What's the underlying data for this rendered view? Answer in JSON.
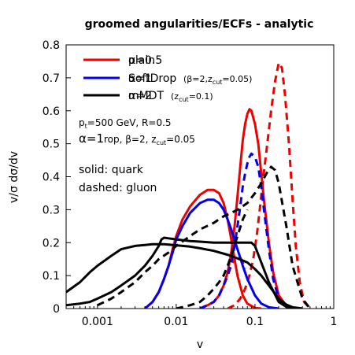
{
  "chart_data": {
    "type": "line",
    "title": "groomed angularities/ECFs - analytic",
    "xlabel": "v",
    "ylabel": "v/σ dσ/dv",
    "xscale": "log",
    "xlim": [
      0.0004,
      1
    ],
    "ylim": [
      0,
      0.8
    ],
    "xticks": [
      {
        "value": 0.001,
        "label": "0.001"
      },
      {
        "value": 0.01,
        "label": "0.01"
      },
      {
        "value": 0.1,
        "label": "0.1"
      },
      {
        "value": 1,
        "label": "1"
      }
    ],
    "yticks": [
      {
        "value": 0,
        "label": "0"
      },
      {
        "value": 0.1,
        "label": "0.1"
      },
      {
        "value": 0.2,
        "label": "0.2"
      },
      {
        "value": 0.3,
        "label": "0.3"
      },
      {
        "value": 0.4,
        "label": "0.4"
      },
      {
        "value": 0.5,
        "label": "0.5"
      },
      {
        "value": 0.6,
        "label": "0.6"
      },
      {
        "value": 0.7,
        "label": "0.7"
      },
      {
        "value": 0.8,
        "label": "0.8"
      }
    ],
    "legend": {
      "placement": "top-left",
      "entries": [
        {
          "text_a": "plain",
          "text_b": "α=0.5",
          "sub": "",
          "color": "#ee0000"
        },
        {
          "text_a": "SoftDrop",
          "text_b": "α=1",
          "sub": "(β=2,z",
          "sub2": "cut",
          "sub3": "=0.05)",
          "color": "#0000ee"
        },
        {
          "text_a": "mMDT",
          "text_b": "α=2",
          "sub": "(z",
          "sub2": "cut",
          "sub3": "=0.1)",
          "color": "#000000"
        }
      ]
    },
    "annotations": {
      "line1_a": "p",
      "line1_sub": "t",
      "line1_b": "=500 GeV, R=0.5",
      "line2_a": "α=1",
      "line2_b": "rop, β=2, z",
      "line2_sub": "cut",
      "line2_c": "=0.05",
      "line3": "solid: quark",
      "line4": "dashed: gluon"
    },
    "series": [
      {
        "color": "#ee0000",
        "dash": false,
        "x": [
          0.02,
          0.025,
          0.03,
          0.035,
          0.04,
          0.045,
          0.05,
          0.055,
          0.06,
          0.065,
          0.07,
          0.075,
          0.08,
          0.085,
          0.09,
          0.1,
          0.11,
          0.12,
          0.13,
          0.15,
          0.17,
          0.2,
          0.25,
          0.3,
          0.35
        ],
        "y": [
          0.0,
          0.01,
          0.02,
          0.04,
          0.07,
          0.11,
          0.17,
          0.25,
          0.34,
          0.43,
          0.51,
          0.56,
          0.59,
          0.605,
          0.6,
          0.56,
          0.5,
          0.41,
          0.33,
          0.2,
          0.11,
          0.04,
          0.008,
          0.001,
          0.0
        ]
      },
      {
        "color": "#ee0000",
        "dash": false,
        "x": [
          0.004,
          0.005,
          0.006,
          0.007,
          0.008,
          0.009,
          0.01,
          0.012,
          0.015,
          0.02,
          0.025,
          0.03,
          0.035,
          0.04,
          0.045,
          0.05,
          0.055,
          0.06,
          0.07,
          0.08,
          0.1,
          0.12
        ],
        "y": [
          0.0,
          0.02,
          0.05,
          0.09,
          0.13,
          0.18,
          0.22,
          0.27,
          0.31,
          0.345,
          0.36,
          0.36,
          0.35,
          0.32,
          0.27,
          0.21,
          0.15,
          0.1,
          0.04,
          0.015,
          0.002,
          0.0
        ]
      },
      {
        "color": "#ee0000",
        "dash": true,
        "x": [
          0.045,
          0.055,
          0.065,
          0.075,
          0.085,
          0.095,
          0.105,
          0.115,
          0.125,
          0.14,
          0.16,
          0.18,
          0.2,
          0.22,
          0.24,
          0.27,
          0.3,
          0.33,
          0.37,
          0.42,
          0.5
        ],
        "y": [
          0.0,
          0.01,
          0.03,
          0.06,
          0.1,
          0.15,
          0.22,
          0.3,
          0.38,
          0.48,
          0.6,
          0.69,
          0.745,
          0.73,
          0.65,
          0.5,
          0.33,
          0.19,
          0.08,
          0.02,
          0.0
        ]
      },
      {
        "color": "#ee0000",
        "dash": true,
        "x": [
          0.02,
          0.025,
          0.03,
          0.035,
          0.04,
          0.045,
          0.05,
          0.055,
          0.06,
          0.065,
          0.07,
          0.075
        ],
        "y": [
          0.0,
          0.01,
          0.02,
          0.04,
          0.07,
          0.1,
          0.13,
          0.15,
          0.16,
          0.155,
          0.14,
          0.12
        ]
      },
      {
        "color": "#0000ee",
        "dash": false,
        "x": [
          0.004,
          0.005,
          0.006,
          0.007,
          0.008,
          0.009,
          0.01,
          0.012,
          0.015,
          0.02,
          0.025,
          0.03,
          0.035,
          0.04,
          0.045,
          0.05,
          0.06,
          0.07,
          0.08,
          0.1,
          0.12,
          0.15,
          0.2
        ],
        "y": [
          0.0,
          0.02,
          0.05,
          0.09,
          0.13,
          0.17,
          0.21,
          0.25,
          0.29,
          0.32,
          0.33,
          0.33,
          0.32,
          0.3,
          0.27,
          0.24,
          0.18,
          0.13,
          0.09,
          0.04,
          0.015,
          0.004,
          0.0
        ]
      },
      {
        "color": "#0000ee",
        "dash": true,
        "x": [
          0.02,
          0.025,
          0.03,
          0.035,
          0.04,
          0.045,
          0.05,
          0.055,
          0.06,
          0.065,
          0.07,
          0.075,
          0.08,
          0.085,
          0.09,
          0.1,
          0.11,
          0.12,
          0.13,
          0.15,
          0.17,
          0.2,
          0.25,
          0.3
        ],
        "y": [
          0.0,
          0.01,
          0.02,
          0.04,
          0.07,
          0.1,
          0.14,
          0.19,
          0.25,
          0.31,
          0.37,
          0.41,
          0.44,
          0.46,
          0.47,
          0.46,
          0.43,
          0.37,
          0.3,
          0.18,
          0.09,
          0.03,
          0.005,
          0.0
        ]
      },
      {
        "color": "#000000",
        "dash": false,
        "x": [
          0.0004,
          0.0006,
          0.0008,
          0.001,
          0.0015,
          0.002,
          0.003,
          0.004,
          0.005,
          0.006,
          0.007,
          0.008,
          0.01,
          0.015,
          0.02,
          0.03,
          0.05,
          0.08,
          0.1,
          0.12,
          0.15,
          0.2,
          0.25,
          0.3,
          0.4
        ],
        "y": [
          0.05,
          0.08,
          0.11,
          0.13,
          0.16,
          0.18,
          0.19,
          0.193,
          0.195,
          0.195,
          0.195,
          0.194,
          0.192,
          0.188,
          0.183,
          0.175,
          0.16,
          0.14,
          0.12,
          0.1,
          0.07,
          0.03,
          0.012,
          0.004,
          0.0
        ]
      },
      {
        "color": "#000000",
        "dash": false,
        "x": [
          0.0004,
          0.0006,
          0.0008,
          0.001,
          0.0015,
          0.002,
          0.003,
          0.004,
          0.005,
          0.006,
          0.0065,
          0.007,
          0.008,
          0.01,
          0.015,
          0.02,
          0.03,
          0.05,
          0.07,
          0.09,
          0.1,
          0.12,
          0.15,
          0.2,
          0.25,
          0.3,
          0.4
        ],
        "y": [
          0.01,
          0.015,
          0.02,
          0.03,
          0.05,
          0.07,
          0.1,
          0.13,
          0.16,
          0.19,
          0.21,
          0.215,
          0.213,
          0.21,
          0.205,
          0.203,
          0.2,
          0.2,
          0.2,
          0.2,
          0.19,
          0.14,
          0.08,
          0.02,
          0.005,
          0.001,
          0.0
        ]
      },
      {
        "color": "#000000",
        "dash": true,
        "x": [
          0.001,
          0.0015,
          0.002,
          0.003,
          0.004,
          0.005,
          0.006,
          0.008,
          0.01,
          0.015,
          0.02,
          0.03,
          0.04,
          0.05,
          0.06,
          0.08,
          0.1,
          0.12,
          0.14,
          0.16,
          0.18,
          0.2,
          0.25,
          0.3,
          0.4,
          0.5
        ],
        "y": [
          0.01,
          0.03,
          0.05,
          0.08,
          0.11,
          0.13,
          0.15,
          0.17,
          0.19,
          0.22,
          0.24,
          0.26,
          0.28,
          0.29,
          0.3,
          0.32,
          0.35,
          0.38,
          0.41,
          0.43,
          0.42,
          0.38,
          0.25,
          0.13,
          0.03,
          0.0
        ]
      },
      {
        "color": "#000000",
        "dash": true,
        "x": [
          0.01,
          0.015,
          0.02,
          0.025,
          0.03,
          0.035,
          0.04,
          0.045,
          0.05,
          0.06,
          0.07,
          0.08
        ],
        "y": [
          0.0,
          0.01,
          0.02,
          0.04,
          0.06,
          0.08,
          0.1,
          0.13,
          0.16,
          0.22,
          0.27,
          0.3
        ]
      }
    ]
  }
}
